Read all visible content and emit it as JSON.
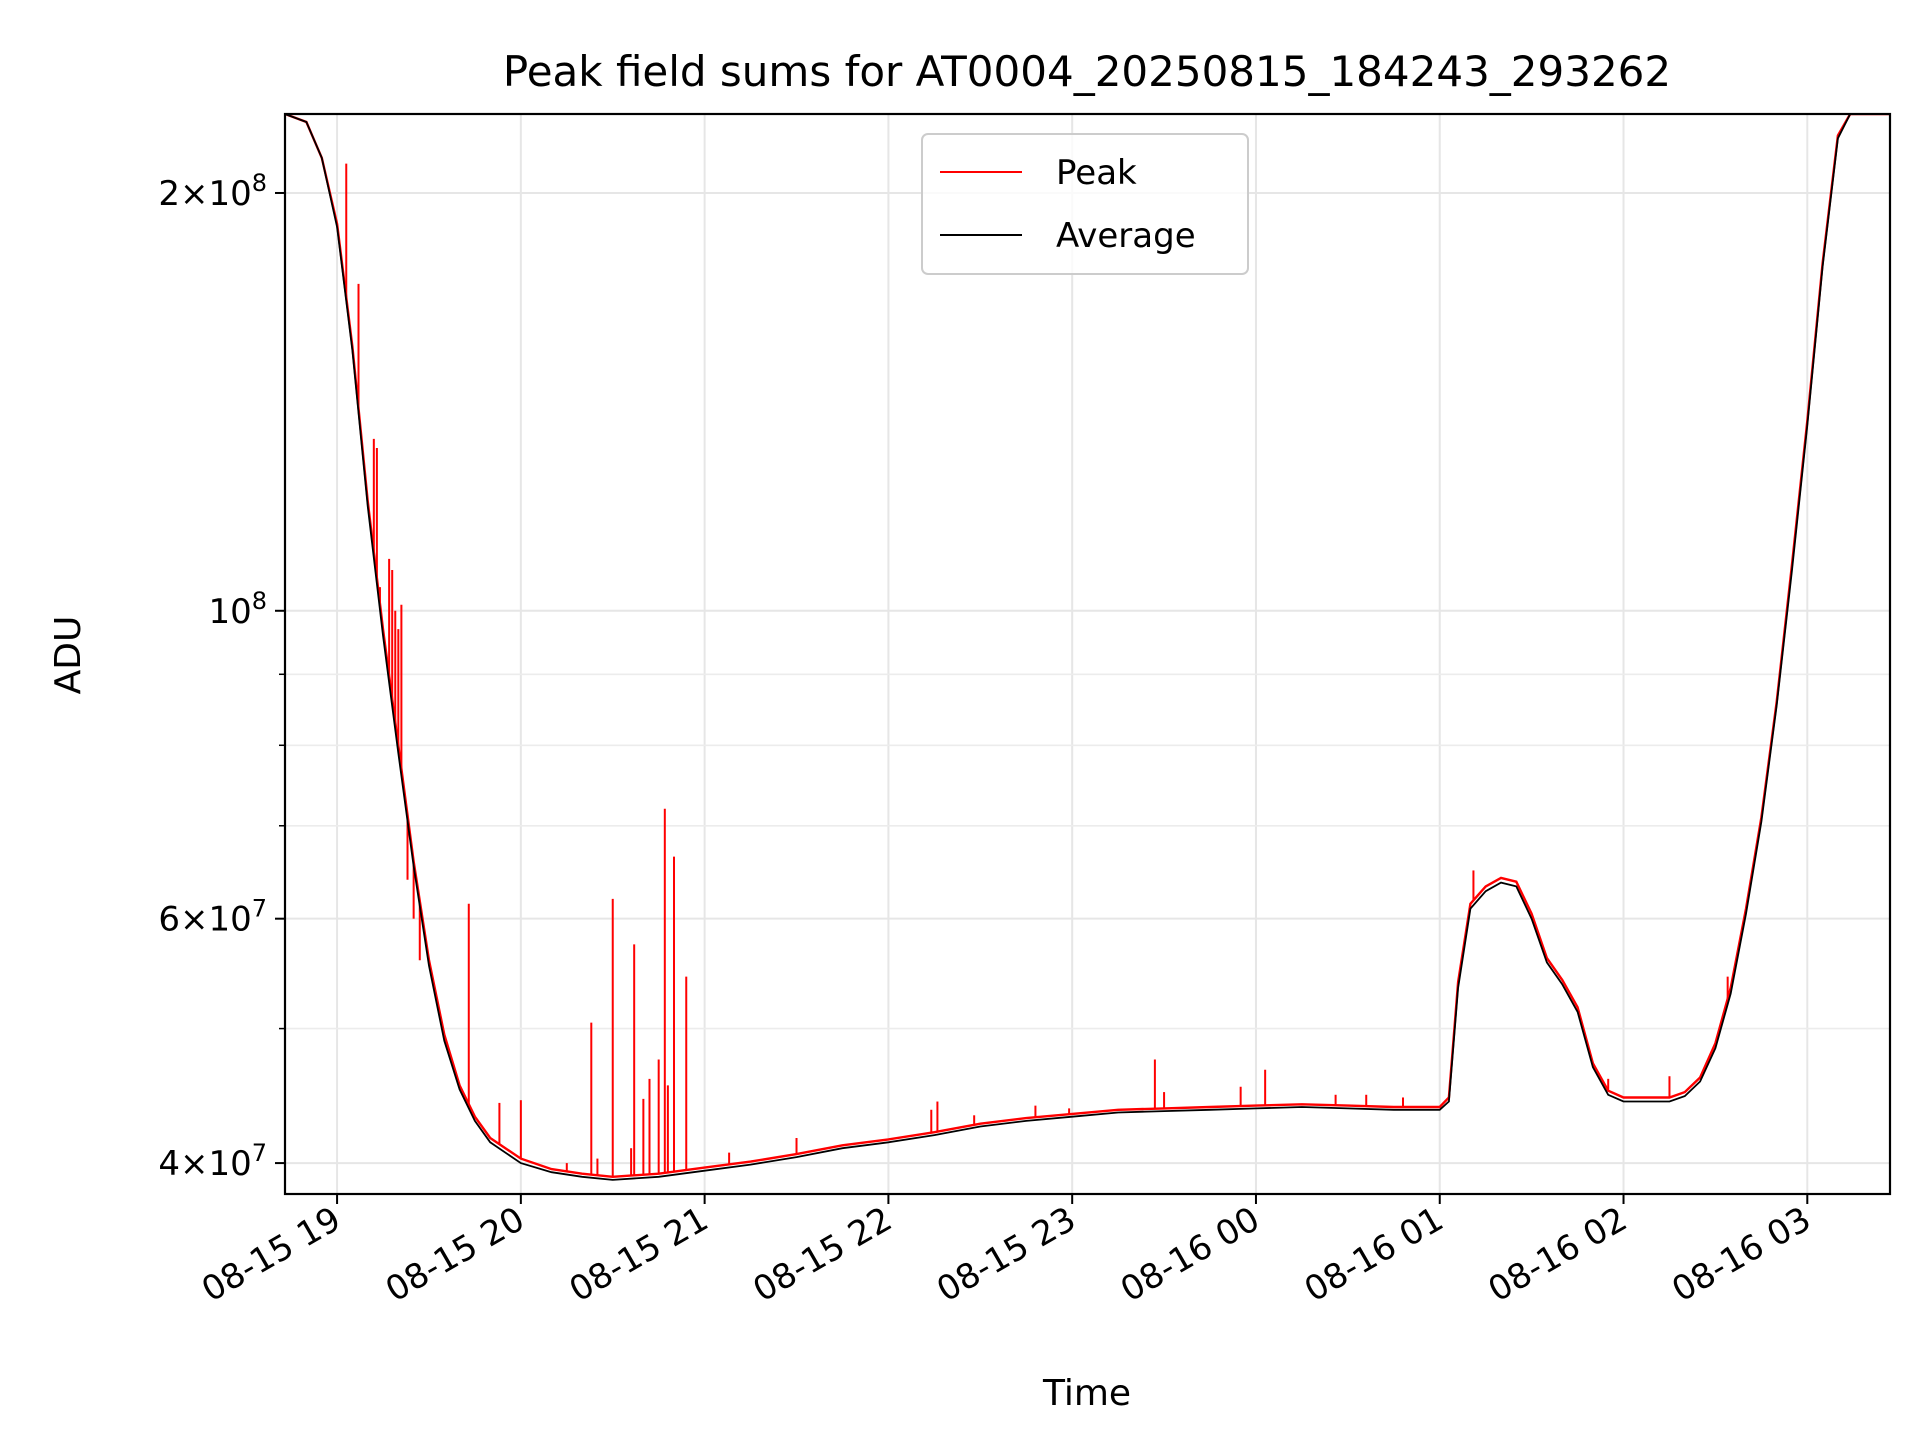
{
  "chart_data": {
    "type": "line",
    "title": "Peak field sums for AT0004_20250815_184243_293262",
    "xlabel": "Time",
    "ylabel": "ADU",
    "yscale": "log",
    "grid": true,
    "legend_position": "upper center",
    "xlim": [
      "2025-08-15 18:43",
      "2025-08-16 03:27"
    ],
    "ylim": [
      38000000,
      228000000
    ],
    "x_ticks": [
      {
        "value": "2025-08-15 19:00",
        "label": "08-15 19"
      },
      {
        "value": "2025-08-15 20:00",
        "label": "08-15 20"
      },
      {
        "value": "2025-08-15 21:00",
        "label": "08-15 21"
      },
      {
        "value": "2025-08-15 22:00",
        "label": "08-15 22"
      },
      {
        "value": "2025-08-15 23:00",
        "label": "08-15 23"
      },
      {
        "value": "2025-08-16 00:00",
        "label": "08-16 00"
      },
      {
        "value": "2025-08-16 01:00",
        "label": "08-16 01"
      },
      {
        "value": "2025-08-16 02:00",
        "label": "08-16 02"
      },
      {
        "value": "2025-08-16 03:00",
        "label": "08-16 03"
      }
    ],
    "y_major_ticks": [
      {
        "value": 40000000,
        "mantissa": "4",
        "base": "10",
        "exp": "7"
      },
      {
        "value": 60000000,
        "mantissa": "6",
        "base": "10",
        "exp": "7"
      },
      {
        "value": 100000000,
        "mantissa": "",
        "base": "10",
        "exp": "8"
      },
      {
        "value": 200000000,
        "mantissa": "2",
        "base": "10",
        "exp": "8"
      }
    ],
    "y_minor_ticks": [
      50000000,
      70000000,
      80000000,
      90000000
    ],
    "series": [
      {
        "name": "Peak",
        "color": "#ff0000",
        "points": [
          [
            "2025-08-15 18:43",
            228000000
          ],
          [
            "2025-08-15 18:50",
            225000000
          ],
          [
            "2025-08-15 18:55",
            212000000
          ],
          [
            "2025-08-15 19:00",
            190000000
          ],
          [
            "2025-08-15 19:05",
            155000000
          ],
          [
            "2025-08-15 19:10",
            120000000
          ],
          [
            "2025-08-15 19:15",
            97000000
          ],
          [
            "2025-08-15 19:20",
            80000000
          ],
          [
            "2025-08-15 19:25",
            66000000
          ],
          [
            "2025-08-15 19:30",
            56000000
          ],
          [
            "2025-08-15 19:35",
            49500000
          ],
          [
            "2025-08-15 19:40",
            45500000
          ],
          [
            "2025-08-15 19:45",
            43200000
          ],
          [
            "2025-08-15 19:50",
            41700000
          ],
          [
            "2025-08-15 20:00",
            40300000
          ],
          [
            "2025-08-15 20:10",
            39600000
          ],
          [
            "2025-08-15 20:20",
            39300000
          ],
          [
            "2025-08-15 20:30",
            39100000
          ],
          [
            "2025-08-15 20:45",
            39300000
          ],
          [
            "2025-08-15 21:00",
            39700000
          ],
          [
            "2025-08-15 21:15",
            40100000
          ],
          [
            "2025-08-15 21:30",
            40600000
          ],
          [
            "2025-08-15 21:45",
            41200000
          ],
          [
            "2025-08-15 22:00",
            41600000
          ],
          [
            "2025-08-15 22:15",
            42100000
          ],
          [
            "2025-08-15 22:30",
            42700000
          ],
          [
            "2025-08-15 22:45",
            43100000
          ],
          [
            "2025-08-15 23:00",
            43400000
          ],
          [
            "2025-08-15 23:15",
            43700000
          ],
          [
            "2025-08-15 23:30",
            43800000
          ],
          [
            "2025-08-15 23:45",
            43900000
          ],
          [
            "2025-08-16 00:00",
            44000000
          ],
          [
            "2025-08-16 00:15",
            44100000
          ],
          [
            "2025-08-16 00:30",
            44000000
          ],
          [
            "2025-08-16 00:45",
            43900000
          ],
          [
            "2025-08-16 01:00",
            43900000
          ],
          [
            "2025-08-16 01:03",
            44600000
          ],
          [
            "2025-08-16 01:06",
            54000000
          ],
          [
            "2025-08-16 01:10",
            61500000
          ],
          [
            "2025-08-16 01:15",
            63300000
          ],
          [
            "2025-08-16 01:20",
            64200000
          ],
          [
            "2025-08-16 01:25",
            63800000
          ],
          [
            "2025-08-16 01:30",
            60500000
          ],
          [
            "2025-08-16 01:35",
            56200000
          ],
          [
            "2025-08-16 01:40",
            54200000
          ],
          [
            "2025-08-16 01:45",
            51800000
          ],
          [
            "2025-08-16 01:50",
            47200000
          ],
          [
            "2025-08-16 01:55",
            45100000
          ],
          [
            "2025-08-16 02:00",
            44600000
          ],
          [
            "2025-08-16 02:15",
            44600000
          ],
          [
            "2025-08-16 02:20",
            45000000
          ],
          [
            "2025-08-16 02:25",
            46100000
          ],
          [
            "2025-08-16 02:30",
            48800000
          ],
          [
            "2025-08-16 02:35",
            53500000
          ],
          [
            "2025-08-16 02:40",
            61000000
          ],
          [
            "2025-08-16 02:45",
            71000000
          ],
          [
            "2025-08-16 02:50",
            86000000
          ],
          [
            "2025-08-16 02:55",
            108000000
          ],
          [
            "2025-08-16 03:00",
            137000000
          ],
          [
            "2025-08-16 03:05",
            178000000
          ],
          [
            "2025-08-16 03:10",
            220000000
          ],
          [
            "2025-08-16 03:14",
            228000000
          ],
          [
            "2025-08-16 03:27",
            228000000
          ]
        ],
        "spikes": [
          [
            "2025-08-15 19:03",
            210000000
          ],
          [
            "2025-08-15 19:07",
            172000000
          ],
          [
            "2025-08-15 19:12",
            133000000
          ],
          [
            "2025-08-15 19:13",
            131000000
          ],
          [
            "2025-08-15 19:14",
            104000000
          ],
          [
            "2025-08-15 19:17",
            109000000
          ],
          [
            "2025-08-15 19:18",
            107000000
          ],
          [
            "2025-08-15 19:19",
            100000000
          ],
          [
            "2025-08-15 19:20",
            97000000
          ],
          [
            "2025-08-15 19:21",
            101000000
          ],
          [
            "2025-08-15 19:23",
            64000000
          ],
          [
            "2025-08-15 19:25",
            60000000
          ],
          [
            "2025-08-15 19:27",
            56000000
          ],
          [
            "2025-08-15 19:43",
            61500000
          ],
          [
            "2025-08-15 19:53",
            44200000
          ],
          [
            "2025-08-15 20:00",
            44400000
          ],
          [
            "2025-08-15 20:15",
            40000000
          ],
          [
            "2025-08-15 20:23",
            50500000
          ],
          [
            "2025-08-15 20:25",
            40300000
          ],
          [
            "2025-08-15 20:30",
            62000000
          ],
          [
            "2025-08-15 20:36",
            41000000
          ],
          [
            "2025-08-15 20:37",
            57500000
          ],
          [
            "2025-08-15 20:40",
            44500000
          ],
          [
            "2025-08-15 20:42",
            46000000
          ],
          [
            "2025-08-15 20:45",
            47500000
          ],
          [
            "2025-08-15 20:47",
            72000000
          ],
          [
            "2025-08-15 20:48",
            45500000
          ],
          [
            "2025-08-15 20:50",
            66500000
          ],
          [
            "2025-08-15 20:54",
            54500000
          ],
          [
            "2025-08-15 21:08",
            40700000
          ],
          [
            "2025-08-15 21:30",
            41700000
          ],
          [
            "2025-08-15 22:14",
            43700000
          ],
          [
            "2025-08-15 22:16",
            44300000
          ],
          [
            "2025-08-15 22:28",
            43300000
          ],
          [
            "2025-08-15 22:48",
            44000000
          ],
          [
            "2025-08-15 22:59",
            43800000
          ],
          [
            "2025-08-15 23:27",
            47500000
          ],
          [
            "2025-08-15 23:30",
            45000000
          ],
          [
            "2025-08-15 23:55",
            45400000
          ],
          [
            "2025-08-16 00:03",
            46700000
          ],
          [
            "2025-08-16 00:26",
            44800000
          ],
          [
            "2025-08-16 00:36",
            44800000
          ],
          [
            "2025-08-16 00:48",
            44600000
          ],
          [
            "2025-08-16 01:11",
            65000000
          ],
          [
            "2025-08-16 01:55",
            46000000
          ],
          [
            "2025-08-16 02:15",
            46200000
          ],
          [
            "2025-08-16 02:34",
            54500000
          ]
        ]
      },
      {
        "name": "Average",
        "color": "#000000",
        "points": [
          [
            "2025-08-15 18:43",
            228000000
          ],
          [
            "2025-08-15 18:50",
            225000000
          ],
          [
            "2025-08-15 18:55",
            212000000
          ],
          [
            "2025-08-15 19:00",
            189000000
          ],
          [
            "2025-08-15 19:05",
            154000000
          ],
          [
            "2025-08-15 19:10",
            119000000
          ],
          [
            "2025-08-15 19:15",
            96000000
          ],
          [
            "2025-08-15 19:20",
            79000000
          ],
          [
            "2025-08-15 19:25",
            65500000
          ],
          [
            "2025-08-15 19:30",
            55500000
          ],
          [
            "2025-08-15 19:35",
            49000000
          ],
          [
            "2025-08-15 19:40",
            45200000
          ],
          [
            "2025-08-15 19:45",
            42900000
          ],
          [
            "2025-08-15 19:50",
            41400000
          ],
          [
            "2025-08-15 20:00",
            40000000
          ],
          [
            "2025-08-15 20:10",
            39400000
          ],
          [
            "2025-08-15 20:20",
            39100000
          ],
          [
            "2025-08-15 20:30",
            38900000
          ],
          [
            "2025-08-15 20:45",
            39100000
          ],
          [
            "2025-08-15 21:00",
            39500000
          ],
          [
            "2025-08-15 21:15",
            39900000
          ],
          [
            "2025-08-15 21:30",
            40400000
          ],
          [
            "2025-08-15 21:45",
            41000000
          ],
          [
            "2025-08-15 22:00",
            41400000
          ],
          [
            "2025-08-15 22:15",
            41900000
          ],
          [
            "2025-08-15 22:30",
            42500000
          ],
          [
            "2025-08-15 22:45",
            42900000
          ],
          [
            "2025-08-15 23:00",
            43200000
          ],
          [
            "2025-08-15 23:15",
            43500000
          ],
          [
            "2025-08-15 23:30",
            43600000
          ],
          [
            "2025-08-15 23:45",
            43700000
          ],
          [
            "2025-08-16 00:00",
            43800000
          ],
          [
            "2025-08-16 00:15",
            43900000
          ],
          [
            "2025-08-16 00:30",
            43800000
          ],
          [
            "2025-08-16 00:45",
            43700000
          ],
          [
            "2025-08-16 01:00",
            43700000
          ],
          [
            "2025-08-16 01:03",
            44300000
          ],
          [
            "2025-08-16 01:06",
            53500000
          ],
          [
            "2025-08-16 01:10",
            61000000
          ],
          [
            "2025-08-16 01:15",
            62800000
          ],
          [
            "2025-08-16 01:20",
            63700000
          ],
          [
            "2025-08-16 01:25",
            63300000
          ],
          [
            "2025-08-16 01:30",
            60000000
          ],
          [
            "2025-08-16 01:35",
            55800000
          ],
          [
            "2025-08-16 01:40",
            53800000
          ],
          [
            "2025-08-16 01:45",
            51400000
          ],
          [
            "2025-08-16 01:50",
            46900000
          ],
          [
            "2025-08-16 01:55",
            44800000
          ],
          [
            "2025-08-16 02:00",
            44300000
          ],
          [
            "2025-08-16 02:15",
            44300000
          ],
          [
            "2025-08-16 02:20",
            44700000
          ],
          [
            "2025-08-16 02:25",
            45800000
          ],
          [
            "2025-08-16 02:30",
            48400000
          ],
          [
            "2025-08-16 02:35",
            53000000
          ],
          [
            "2025-08-16 02:40",
            60500000
          ],
          [
            "2025-08-16 02:45",
            70500000
          ],
          [
            "2025-08-16 02:50",
            85500000
          ],
          [
            "2025-08-16 02:55",
            107000000
          ],
          [
            "2025-08-16 03:00",
            136000000
          ],
          [
            "2025-08-16 03:05",
            177000000
          ],
          [
            "2025-08-16 03:10",
            219000000
          ],
          [
            "2025-08-16 03:14",
            228000000
          ],
          [
            "2025-08-16 03:27",
            228000000
          ]
        ]
      }
    ]
  }
}
